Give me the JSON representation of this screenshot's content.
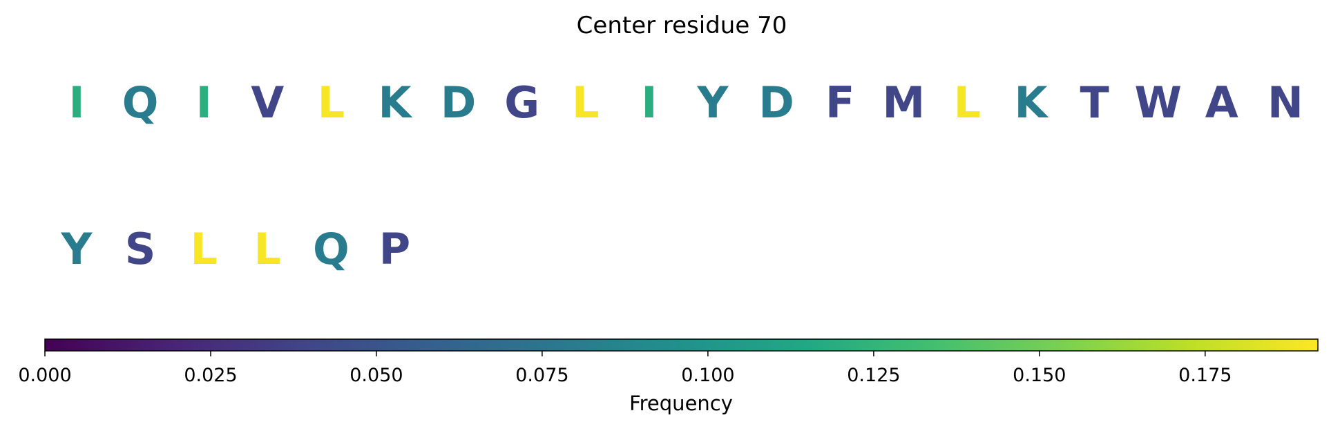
{
  "chart_data": {
    "type": "sequence-logo",
    "title": "Center residue 70",
    "rows": [
      {
        "residues": [
          {
            "letter": "I",
            "frequency": 0.12
          },
          {
            "letter": "Q",
            "frequency": 0.08
          },
          {
            "letter": "I",
            "frequency": 0.12
          },
          {
            "letter": "V",
            "frequency": 0.04
          },
          {
            "letter": "L",
            "frequency": 0.19
          },
          {
            "letter": "K",
            "frequency": 0.08
          },
          {
            "letter": "D",
            "frequency": 0.08
          },
          {
            "letter": "G",
            "frequency": 0.04
          },
          {
            "letter": "L",
            "frequency": 0.19
          },
          {
            "letter": "I",
            "frequency": 0.12
          },
          {
            "letter": "Y",
            "frequency": 0.08
          },
          {
            "letter": "D",
            "frequency": 0.08
          },
          {
            "letter": "F",
            "frequency": 0.04
          },
          {
            "letter": "M",
            "frequency": 0.04
          },
          {
            "letter": "L",
            "frequency": 0.19
          },
          {
            "letter": "K",
            "frequency": 0.08
          },
          {
            "letter": "T",
            "frequency": 0.04
          },
          {
            "letter": "W",
            "frequency": 0.04
          },
          {
            "letter": "A",
            "frequency": 0.04
          },
          {
            "letter": "N",
            "frequency": 0.04
          }
        ]
      },
      {
        "residues": [
          {
            "letter": "Y",
            "frequency": 0.08
          },
          {
            "letter": "S",
            "frequency": 0.04
          },
          {
            "letter": "L",
            "frequency": 0.19
          },
          {
            "letter": "L",
            "frequency": 0.19
          },
          {
            "letter": "Q",
            "frequency": 0.08
          },
          {
            "letter": "P",
            "frequency": 0.04
          }
        ]
      }
    ],
    "colorbar": {
      "label": "Frequency",
      "colormap": "viridis",
      "range": [
        0,
        0.192
      ],
      "ticks": [
        0.0,
        0.025,
        0.05,
        0.075,
        0.1,
        0.125,
        0.15,
        0.175
      ],
      "tick_labels": [
        "0.000",
        "0.025",
        "0.050",
        "0.075",
        "0.100",
        "0.125",
        "0.150",
        "0.175"
      ],
      "orientation": "horizontal",
      "placement": "bottom"
    },
    "axes_visible": false,
    "grid": false
  }
}
